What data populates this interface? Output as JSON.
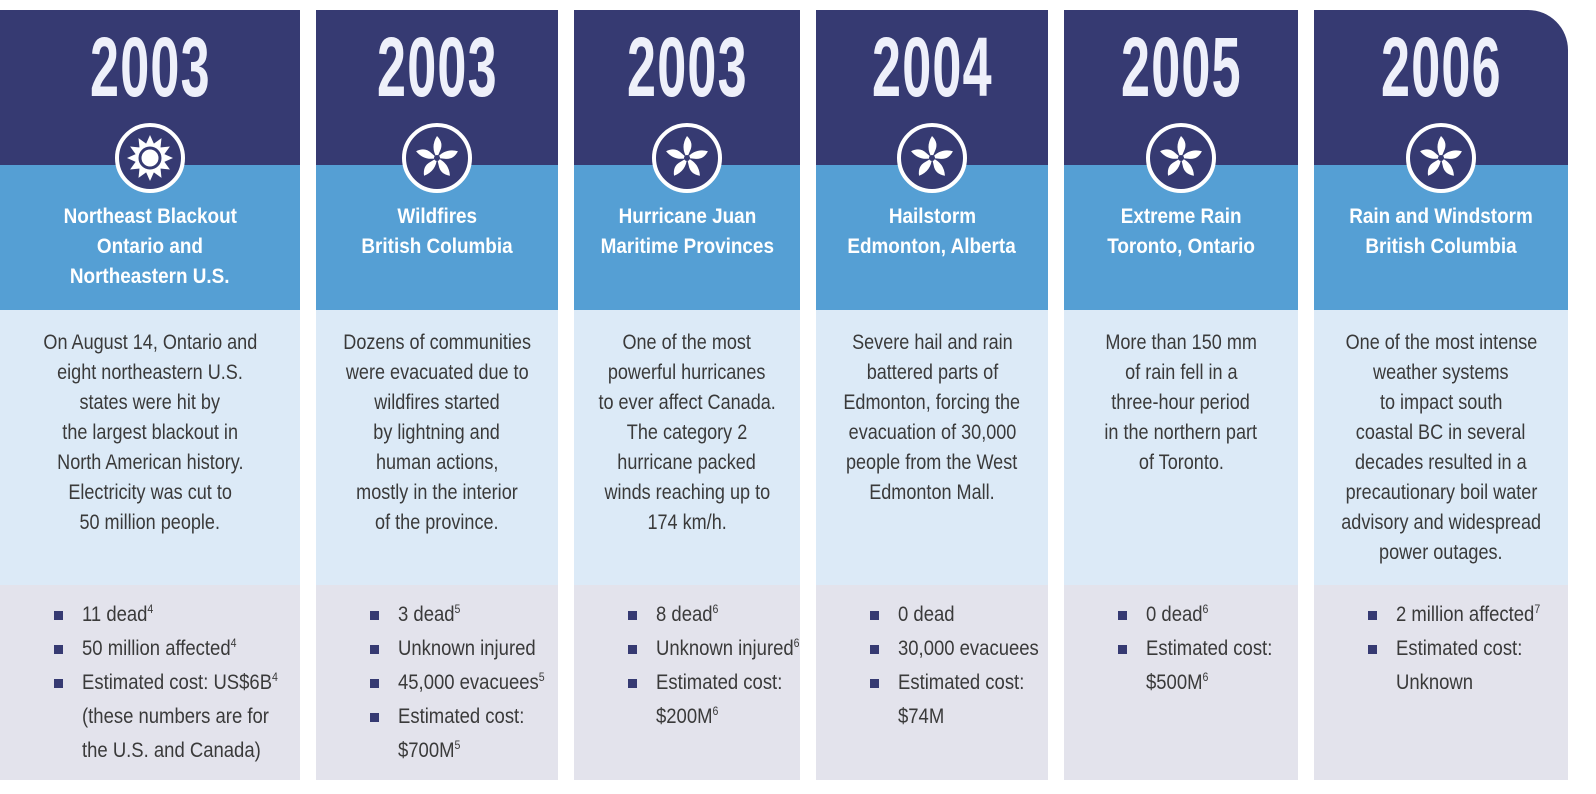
{
  "columns": [
    {
      "year": "2003",
      "icon": "sun",
      "title": [
        "Northeast Blackout",
        "Ontario and",
        "Northeastern U.S."
      ],
      "description": [
        "On August 14, Ontario and",
        "eight northeastern U.S.",
        "states were hit by",
        "the largest blackout in",
        "North American history.",
        "Electricity was cut to",
        "50 million people."
      ],
      "bullets": [
        [
          {
            "text": "11 dead",
            "sup": "4"
          }
        ],
        [
          {
            "text": "50 million affected",
            "sup": "4"
          }
        ],
        [
          {
            "text": "Estimated cost: US$6B",
            "sup": "4"
          },
          {
            "text": "(these numbers are for"
          },
          {
            "text": "the U.S. and Canada)"
          }
        ]
      ]
    },
    {
      "year": "2003",
      "icon": "pinwheel",
      "title": [
        "Wildfires",
        "British Columbia"
      ],
      "description": [
        "Dozens of communities",
        "were evacuated due to",
        "wildfires started",
        "by lightning and",
        "human actions,",
        "mostly in the interior",
        "of the province."
      ],
      "bullets": [
        [
          {
            "text": "3 dead",
            "sup": "5"
          }
        ],
        [
          {
            "text": "Unknown injured"
          }
        ],
        [
          {
            "text": "45,000 evacuees",
            "sup": "5"
          }
        ],
        [
          {
            "text": "Estimated cost:"
          },
          {
            "text": "$700M",
            "sup": "5"
          }
        ]
      ]
    },
    {
      "year": "2003",
      "icon": "pinwheel",
      "title": [
        "Hurricane Juan",
        "Maritime Provinces"
      ],
      "description": [
        "One of the most",
        "powerful hurricanes",
        "to ever affect Canada.",
        "The category 2",
        "hurricane packed",
        "winds reaching up to",
        "174 km/h."
      ],
      "bullets": [
        [
          {
            "text": "8 dead",
            "sup": "6"
          }
        ],
        [
          {
            "text": "Unknown injured",
            "sup": "6"
          }
        ],
        [
          {
            "text": "Estimated cost:"
          },
          {
            "text": "$200M",
            "sup": "6"
          }
        ]
      ]
    },
    {
      "year": "2004",
      "icon": "pinwheel",
      "title": [
        "Hailstorm",
        "Edmonton, Alberta"
      ],
      "description": [
        "Severe hail and rain",
        "battered parts of",
        "Edmonton, forcing the",
        "evacuation of 30,000",
        "people from the West",
        "Edmonton Mall."
      ],
      "bullets": [
        [
          {
            "text": "0 dead"
          }
        ],
        [
          {
            "text": "30,000 evacuees"
          }
        ],
        [
          {
            "text": "Estimated cost:"
          },
          {
            "text": "$74M"
          }
        ]
      ]
    },
    {
      "year": "2005",
      "icon": "pinwheel",
      "title": [
        "Extreme Rain",
        "Toronto, Ontario"
      ],
      "description": [
        "More than 150 mm",
        "of rain fell in a",
        "three-hour period",
        "in the northern part",
        "of Toronto."
      ],
      "bullets": [
        [
          {
            "text": "0 dead",
            "sup": "6"
          }
        ],
        [
          {
            "text": "Estimated cost:"
          },
          {
            "text": "$500M",
            "sup": "6"
          }
        ]
      ]
    },
    {
      "year": "2006",
      "icon": "pinwheel",
      "title": [
        "Rain and Windstorm",
        "British Columbia"
      ],
      "description": [
        "One of the most intense",
        "weather systems",
        "to impact south",
        "coastal BC in several",
        "decades resulted in a",
        "precautionary boil water",
        "advisory and widespread",
        "power outages."
      ],
      "bullets": [
        [
          {
            "text": "2 million affected",
            "sup": "7"
          }
        ],
        [
          {
            "text": "Estimated cost:"
          },
          {
            "text": "Unknown"
          }
        ]
      ]
    }
  ]
}
